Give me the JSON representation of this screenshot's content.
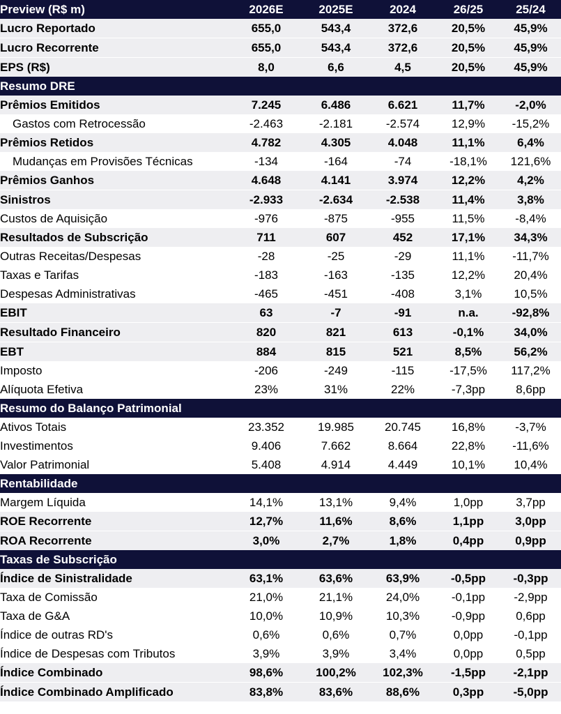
{
  "table": {
    "header": [
      "Preview (R$ m)",
      "2026E",
      "2025E",
      "2024",
      "26/25",
      "25/24"
    ],
    "rows": [
      {
        "kind": "row",
        "bold": true,
        "shade": true,
        "indent": false,
        "label": "Lucro Reportado",
        "values": [
          "655,0",
          "543,4",
          "372,6",
          "20,5%",
          "45,9%"
        ]
      },
      {
        "kind": "row",
        "bold": true,
        "shade": true,
        "indent": false,
        "label": "Lucro Recorrente",
        "values": [
          "655,0",
          "543,4",
          "372,6",
          "20,5%",
          "45,9%"
        ]
      },
      {
        "kind": "row",
        "bold": true,
        "shade": true,
        "indent": false,
        "label": "EPS (R$)",
        "values": [
          "8,0",
          "6,6",
          "4,5",
          "20,5%",
          "45,9%"
        ]
      },
      {
        "kind": "section",
        "label": "Resumo DRE"
      },
      {
        "kind": "row",
        "bold": true,
        "shade": true,
        "indent": false,
        "label": "Prêmios Emitidos",
        "values": [
          "7.245",
          "6.486",
          "6.621",
          "11,7%",
          "-2,0%"
        ]
      },
      {
        "kind": "row",
        "bold": false,
        "shade": false,
        "indent": true,
        "label": "Gastos com Retrocessão",
        "values": [
          "-2.463",
          "-2.181",
          "-2.574",
          "12,9%",
          "-15,2%"
        ]
      },
      {
        "kind": "row",
        "bold": true,
        "shade": true,
        "indent": false,
        "label": "Prêmios Retidos",
        "values": [
          "4.782",
          "4.305",
          "4.048",
          "11,1%",
          "6,4%"
        ]
      },
      {
        "kind": "row",
        "bold": false,
        "shade": false,
        "indent": true,
        "label": "Mudanças em Provisões Técnicas",
        "values": [
          "-134",
          "-164",
          "-74",
          "-18,1%",
          "121,6%"
        ]
      },
      {
        "kind": "row",
        "bold": true,
        "shade": true,
        "indent": false,
        "label": "Prêmios Ganhos",
        "values": [
          "4.648",
          "4.141",
          "3.974",
          "12,2%",
          "4,2%"
        ]
      },
      {
        "kind": "row",
        "bold": true,
        "shade": true,
        "indent": false,
        "label": "Sinistros",
        "values": [
          "-2.933",
          "-2.634",
          "-2.538",
          "11,4%",
          "3,8%"
        ]
      },
      {
        "kind": "row",
        "bold": false,
        "shade": false,
        "indent": false,
        "label": "Custos de Aquisição",
        "values": [
          "-976",
          "-875",
          "-955",
          "11,5%",
          "-8,4%"
        ]
      },
      {
        "kind": "row",
        "bold": true,
        "shade": true,
        "indent": false,
        "label": "Resultados de Subscrição",
        "values": [
          "711",
          "607",
          "452",
          "17,1%",
          "34,3%"
        ]
      },
      {
        "kind": "row",
        "bold": false,
        "shade": false,
        "indent": false,
        "label": "Outras Receitas/Despesas",
        "values": [
          "-28",
          "-25",
          "-29",
          "11,1%",
          "-11,7%"
        ]
      },
      {
        "kind": "row",
        "bold": false,
        "shade": false,
        "indent": false,
        "label": "Taxas e Tarifas",
        "values": [
          "-183",
          "-163",
          "-135",
          "12,2%",
          "20,4%"
        ]
      },
      {
        "kind": "row",
        "bold": false,
        "shade": false,
        "indent": false,
        "label": "Despesas Administrativas",
        "values": [
          "-465",
          "-451",
          "-408",
          "3,1%",
          "10,5%"
        ]
      },
      {
        "kind": "row",
        "bold": true,
        "shade": true,
        "indent": false,
        "label": "EBIT",
        "values": [
          "63",
          "-7",
          "-91",
          "n.a.",
          "-92,8%"
        ]
      },
      {
        "kind": "row",
        "bold": true,
        "shade": true,
        "indent": false,
        "label": "Resultado Financeiro",
        "values": [
          "820",
          "821",
          "613",
          "-0,1%",
          "34,0%"
        ]
      },
      {
        "kind": "row",
        "bold": true,
        "shade": true,
        "indent": false,
        "label": "EBT",
        "values": [
          "884",
          "815",
          "521",
          "8,5%",
          "56,2%"
        ]
      },
      {
        "kind": "row",
        "bold": false,
        "shade": false,
        "indent": false,
        "label": "Imposto",
        "values": [
          "-206",
          "-249",
          "-115",
          "-17,5%",
          "117,2%"
        ]
      },
      {
        "kind": "row",
        "bold": false,
        "shade": false,
        "indent": false,
        "label": "Alíquota Efetiva",
        "values": [
          "23%",
          "31%",
          "22%",
          "-7,3pp",
          "8,6pp"
        ]
      },
      {
        "kind": "section",
        "label": "Resumo do Balanço Patrimonial"
      },
      {
        "kind": "row",
        "bold": false,
        "shade": false,
        "indent": false,
        "label": "Ativos Totais",
        "values": [
          "23.352",
          "19.985",
          "20.745",
          "16,8%",
          "-3,7%"
        ]
      },
      {
        "kind": "row",
        "bold": false,
        "shade": false,
        "indent": false,
        "label": "Investimentos",
        "values": [
          "9.406",
          "7.662",
          "8.664",
          "22,8%",
          "-11,6%"
        ]
      },
      {
        "kind": "row",
        "bold": false,
        "shade": false,
        "indent": false,
        "label": "Valor Patrimonial",
        "values": [
          "5.408",
          "4.914",
          "4.449",
          "10,1%",
          "10,4%"
        ]
      },
      {
        "kind": "section",
        "label": "Rentabilidade"
      },
      {
        "kind": "row",
        "bold": false,
        "shade": false,
        "indent": false,
        "label": "Margem Líquida",
        "values": [
          "14,1%",
          "13,1%",
          "9,4%",
          "1,0pp",
          "3,7pp"
        ]
      },
      {
        "kind": "row",
        "bold": true,
        "shade": true,
        "indent": false,
        "label": "ROE Recorrente",
        "values": [
          "12,7%",
          "11,6%",
          "8,6%",
          "1,1pp",
          "3,0pp"
        ]
      },
      {
        "kind": "row",
        "bold": true,
        "shade": true,
        "indent": false,
        "label": "ROA Recorrente",
        "values": [
          "3,0%",
          "2,7%",
          "1,8%",
          "0,4pp",
          "0,9pp"
        ]
      },
      {
        "kind": "section",
        "label": "Taxas de Subscrição"
      },
      {
        "kind": "row",
        "bold": true,
        "shade": true,
        "indent": false,
        "label": "Índice de Sinistralidade",
        "values": [
          "63,1%",
          "63,6%",
          "63,9%",
          "-0,5pp",
          "-0,3pp"
        ]
      },
      {
        "kind": "row",
        "bold": false,
        "shade": false,
        "indent": false,
        "label": "Taxa de Comissão",
        "values": [
          "21,0%",
          "21,1%",
          "24,0%",
          "-0,1pp",
          "-2,9pp"
        ]
      },
      {
        "kind": "row",
        "bold": false,
        "shade": false,
        "indent": false,
        "label": "Taxa de G&A",
        "values": [
          "10,0%",
          "10,9%",
          "10,3%",
          "-0,9pp",
          "0,6pp"
        ]
      },
      {
        "kind": "row",
        "bold": false,
        "shade": false,
        "indent": false,
        "label": "Índice de outras RD's",
        "values": [
          "0,6%",
          "0,6%",
          "0,7%",
          "0,0pp",
          "-0,1pp"
        ]
      },
      {
        "kind": "row",
        "bold": false,
        "shade": false,
        "indent": false,
        "label": "Índice de Despesas com Tributos",
        "values": [
          "3,9%",
          "3,9%",
          "3,4%",
          "0,0pp",
          "0,5pp"
        ]
      },
      {
        "kind": "row",
        "bold": true,
        "shade": true,
        "indent": false,
        "label": "Índice Combinado",
        "values": [
          "98,6%",
          "100,2%",
          "102,3%",
          "-1,5pp",
          "-2,1pp"
        ]
      },
      {
        "kind": "row",
        "bold": true,
        "shade": true,
        "indent": false,
        "label": "Índice Combinado Amplificado",
        "values": [
          "83,8%",
          "83,6%",
          "88,6%",
          "0,3pp",
          "-5,0pp"
        ]
      }
    ]
  }
}
